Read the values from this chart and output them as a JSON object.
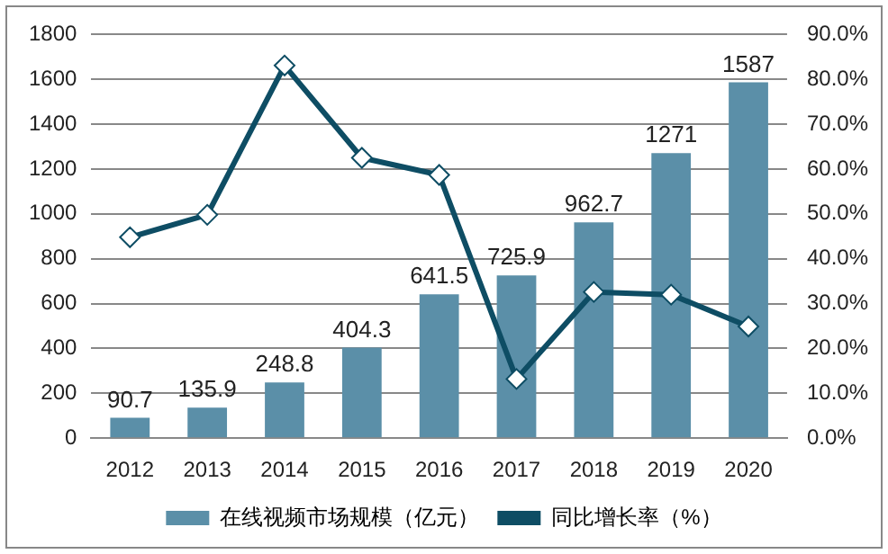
{
  "chart_data": {
    "type": "bar",
    "categories": [
      "2012",
      "2013",
      "2014",
      "2015",
      "2016",
      "2017",
      "2018",
      "2019",
      "2020"
    ],
    "series": [
      {
        "name": "在线视频市场规模（亿元）",
        "color": "#5b8fa8",
        "values": [
          90.7,
          135.9,
          248.8,
          404.3,
          641.5,
          725.9,
          962.7,
          1271,
          1587
        ],
        "value_labels": [
          "90.7",
          "135.9",
          "248.8",
          "404.3",
          "641.5",
          "725.9",
          "962.7",
          "1271",
          "1587"
        ]
      },
      {
        "name": "同比增长率（%）",
        "type": "line",
        "axis": "y2",
        "color": "#0e4d64",
        "values": [
          44.8,
          49.8,
          83.1,
          62.5,
          58.7,
          13.2,
          32.6,
          32.0,
          24.9
        ]
      }
    ],
    "ylim": [
      0,
      1800
    ],
    "yticks": [
      0,
      200,
      400,
      600,
      800,
      1000,
      1200,
      1400,
      1600,
      1800
    ],
    "y2lim": [
      0,
      90
    ],
    "y2ticks": [
      {
        "value": 0,
        "label": "0.0%"
      },
      {
        "value": 10,
        "label": "10.0%"
      },
      {
        "value": 20,
        "label": "20.0%"
      },
      {
        "value": 30,
        "label": "30.0%"
      },
      {
        "value": 40,
        "label": "40.0%"
      },
      {
        "value": 50,
        "label": "50.0%"
      },
      {
        "value": 60,
        "label": "60.0%"
      },
      {
        "value": 70,
        "label": "70.0%"
      },
      {
        "value": 80,
        "label": "80.0%"
      },
      {
        "value": 90,
        "label": "90.0%"
      }
    ],
    "grid": "y",
    "legend": "bottom",
    "marker": "diamond",
    "line_style": "solid"
  }
}
